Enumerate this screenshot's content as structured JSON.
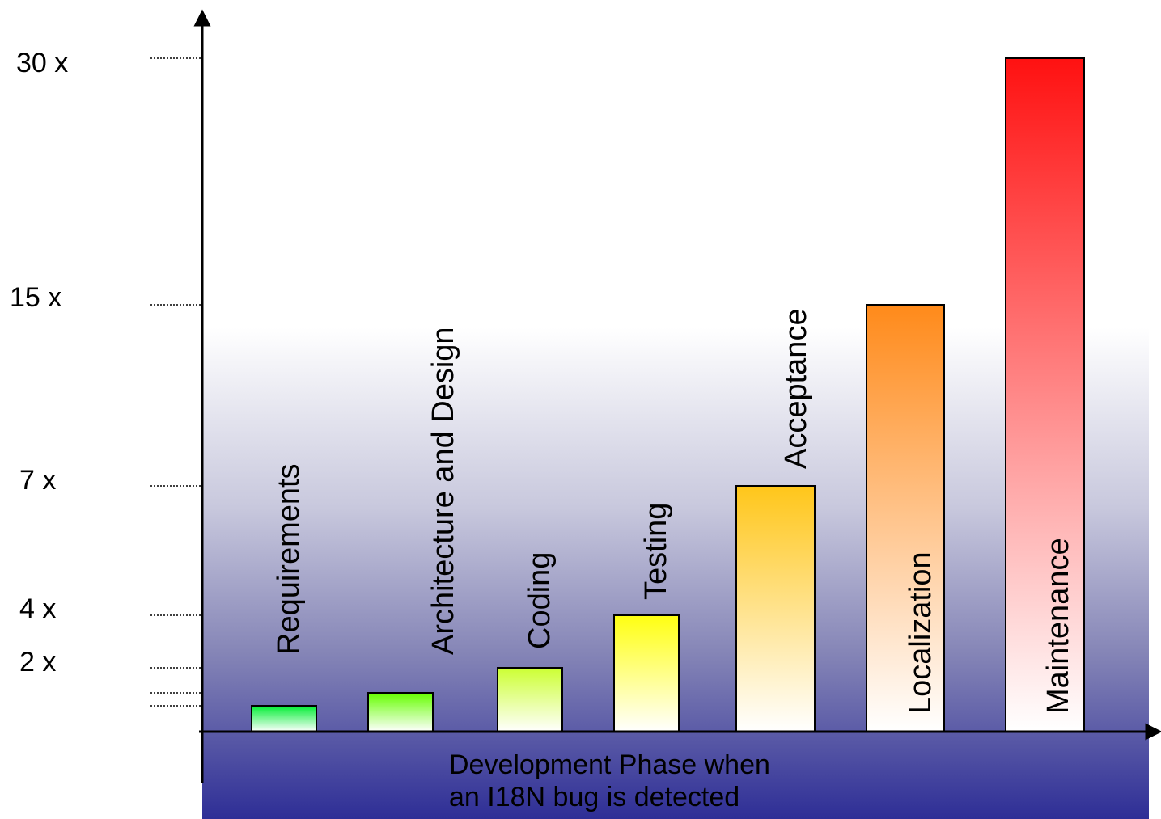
{
  "chart_data": {
    "type": "bar",
    "categories": [
      "Requirements",
      "Architecture and Design",
      "Coding",
      "Testing",
      "Acceptance",
      "Localization",
      "Maintenance"
    ],
    "values": [
      1,
      1.5,
      2,
      4,
      7,
      15,
      30
    ],
    "ytick_labels": [
      {
        "value": 30,
        "label": "30 x"
      },
      {
        "value": 15,
        "label": "15 x"
      },
      {
        "value": 7,
        "label": "7 x"
      },
      {
        "value": 4,
        "label": "4 x"
      },
      {
        "value": 2,
        "label": "2 x"
      }
    ],
    "minor_ticks": [
      1,
      1.5
    ],
    "title": "",
    "xlabel_line1": "Development Phase when",
    "xlabel_line2": "an I18N bug is detected",
    "ylabel": "",
    "ylim": [
      0,
      32
    ],
    "scale": "non-linear (spaced by tick labels)",
    "grid": false,
    "legend": "none",
    "bar_colors": [
      "#00ee33",
      "#66ff00",
      "#ccff33",
      "#ffff11",
      "#ffc61a",
      "#ff8a1a",
      "#ff1111"
    ],
    "background_gradient": [
      "#ffffff",
      "#2e2e96"
    ]
  }
}
